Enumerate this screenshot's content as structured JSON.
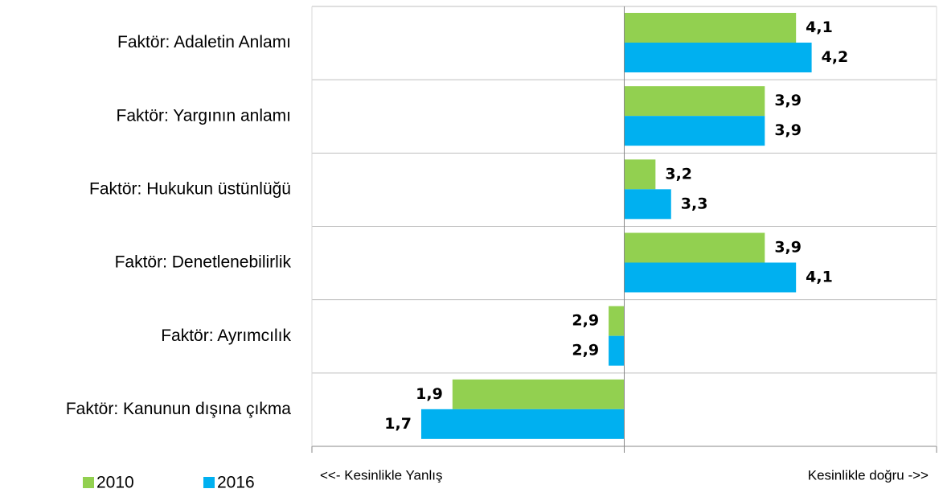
{
  "chart_data": {
    "type": "bar",
    "orientation": "horizontal",
    "categories": [
      "Faktör: Adaletin Anlamı",
      "Faktör: Yargının anlamı",
      "Faktör: Hukukun üstünlüğü",
      "Faktör: Denetlenebilirlik",
      "Faktör: Ayrımcılık",
      "Faktör: Kanunun dışına çıkma"
    ],
    "series": [
      {
        "name": "2010",
        "color": "#92d050",
        "values": [
          4.1,
          3.9,
          3.2,
          3.9,
          2.9,
          1.9
        ],
        "value_labels": [
          "4,1",
          "3,9",
          "3,2",
          "3,9",
          "2,9",
          "1,9"
        ]
      },
      {
        "name": "2016",
        "color": "#00b0f0",
        "values": [
          4.2,
          3.9,
          3.3,
          4.1,
          2.9,
          1.7
        ],
        "value_labels": [
          "4,2",
          "3,9",
          "3,3",
          "4,1",
          "2,9",
          "1,7"
        ]
      }
    ],
    "base": 3,
    "xlim": [
      1,
      5
    ],
    "x_label_left": "<<- Kesinlikle Yanlış",
    "x_label_right": "Kesinlikle doğru ->>",
    "legend": "bottom-left"
  }
}
